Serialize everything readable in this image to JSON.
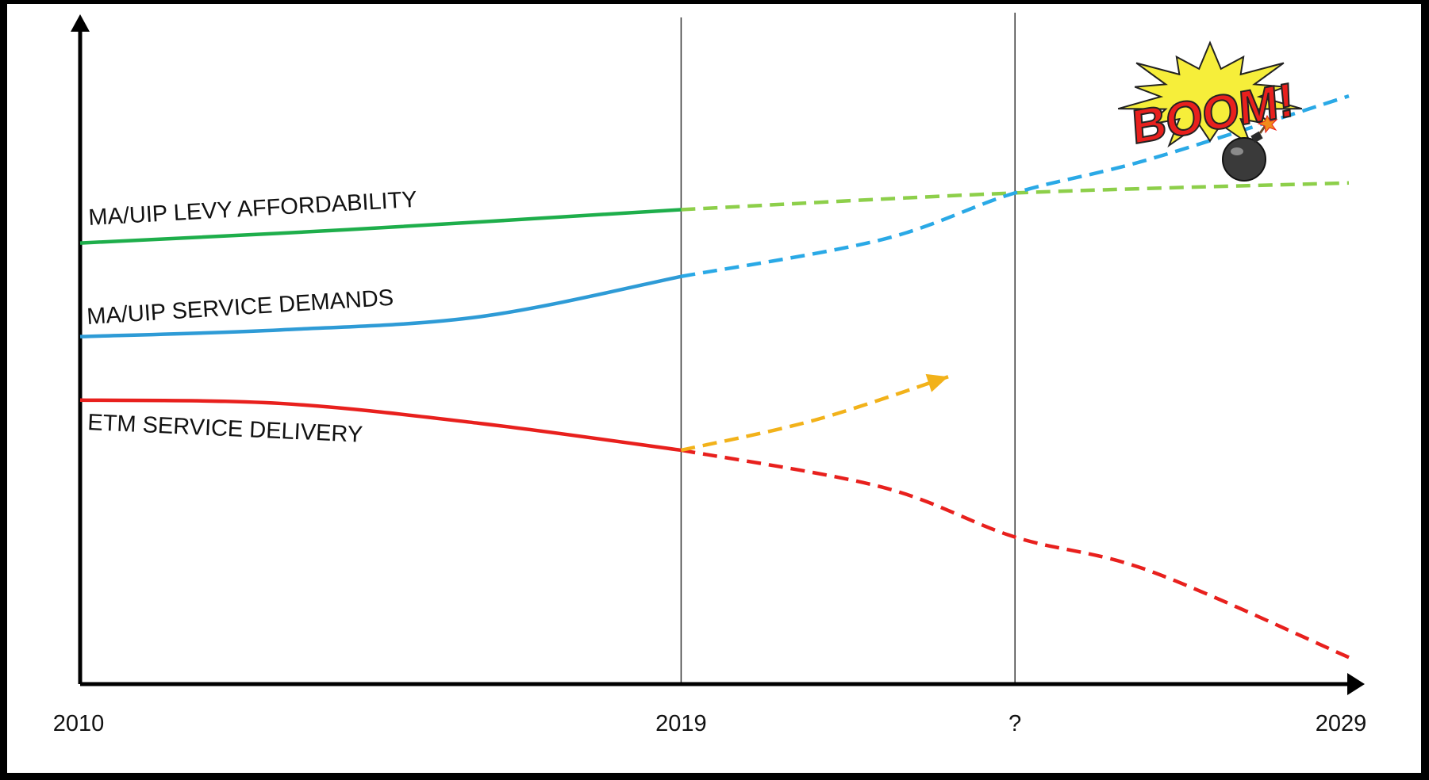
{
  "chart_data": {
    "type": "line",
    "title": "",
    "xlabel": "",
    "ylabel": "",
    "x_ticks": [
      "2010",
      "2019",
      "?",
      "2029"
    ],
    "y_range": [
      0,
      100
    ],
    "grid": false,
    "series": [
      {
        "name": "MA/UIP LEVY AFFORDABILITY",
        "color": "#1eae4b",
        "projection_color": "#8dcf4a",
        "actual": [
          [
            2010,
            66
          ],
          [
            2014,
            68
          ],
          [
            2019,
            71
          ]
        ],
        "projection": [
          [
            2019,
            71
          ],
          [
            2024,
            73.5
          ],
          [
            2029,
            75
          ]
        ]
      },
      {
        "name": "MA/UIP SERVICE DEMANDS",
        "color": "#2e9bd6",
        "projection_color": "#2aa9e6",
        "actual": [
          [
            2010,
            52
          ],
          [
            2013,
            53
          ],
          [
            2016,
            55
          ],
          [
            2019,
            61
          ]
        ],
        "projection": [
          [
            2019,
            61
          ],
          [
            2022,
            66.5
          ],
          [
            2024,
            73.5
          ],
          [
            2026,
            78.5
          ],
          [
            2029,
            88
          ]
        ]
      },
      {
        "name": "ETM SERVICE DELIVERY",
        "color": "#e8201d",
        "projection_color": "#e8201d",
        "actual": [
          [
            2010,
            42.5
          ],
          [
            2013,
            42
          ],
          [
            2016,
            39
          ],
          [
            2019,
            35
          ]
        ],
        "projection": [
          [
            2019,
            35
          ],
          [
            2022,
            29.5
          ],
          [
            2024,
            22
          ],
          [
            2026,
            17
          ],
          [
            2029,
            4
          ]
        ]
      },
      {
        "name": "",
        "color": "#f2b21a",
        "projection_color": "#f2b21a",
        "actual": [],
        "projection": [
          [
            2019,
            35
          ],
          [
            2021,
            39.5
          ],
          [
            2023,
            46
          ]
        ],
        "arrow": true
      }
    ],
    "vertical_markers": [
      "2019",
      "?"
    ],
    "annotation": {
      "text": "BOOM!",
      "icon": "bomb-icon",
      "fill_color": "#e8201d",
      "burst_color": "#f6ee3a"
    }
  }
}
